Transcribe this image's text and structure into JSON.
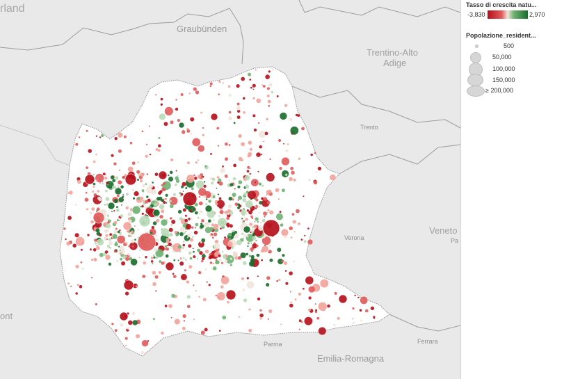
{
  "map": {
    "places": [
      {
        "key": "switzerland",
        "label": "rland"
      },
      {
        "key": "graubunden",
        "label": "Graubünden"
      },
      {
        "key": "trentino_1",
        "label": "Trentino-Alto"
      },
      {
        "key": "trentino_2",
        "label": "Adige"
      },
      {
        "key": "trento",
        "label": "Trento"
      },
      {
        "key": "verona",
        "label": "Verona"
      },
      {
        "key": "veneto",
        "label": "Veneto"
      },
      {
        "key": "padova",
        "label": "Pa"
      },
      {
        "key": "piemonte",
        "label": "ont"
      },
      {
        "key": "parma",
        "label": "Parma"
      },
      {
        "key": "ferrara",
        "label": "Ferrara"
      },
      {
        "key": "emilia",
        "label": "Emilia-Romagna"
      }
    ]
  },
  "legend": {
    "color_title": "Tasso di crescita natu...",
    "color_min": "-3,830",
    "color_max": "2,970",
    "size_title": "Popolazione_resident...",
    "size_items": [
      {
        "label": "500",
        "value": 500
      },
      {
        "label": "50,000",
        "value": 50000
      },
      {
        "label": "100,000",
        "value": 100000
      },
      {
        "label": "150,000",
        "value": 150000
      },
      {
        "label": "≥ 200,000",
        "value": 200000
      }
    ]
  },
  "colors": {
    "negative_strong": "#b5101b",
    "negative": "#e05a5a",
    "neutral": "#f1e6dc",
    "positive": "#6fb273",
    "positive_strong": "#1a6b2c"
  }
}
